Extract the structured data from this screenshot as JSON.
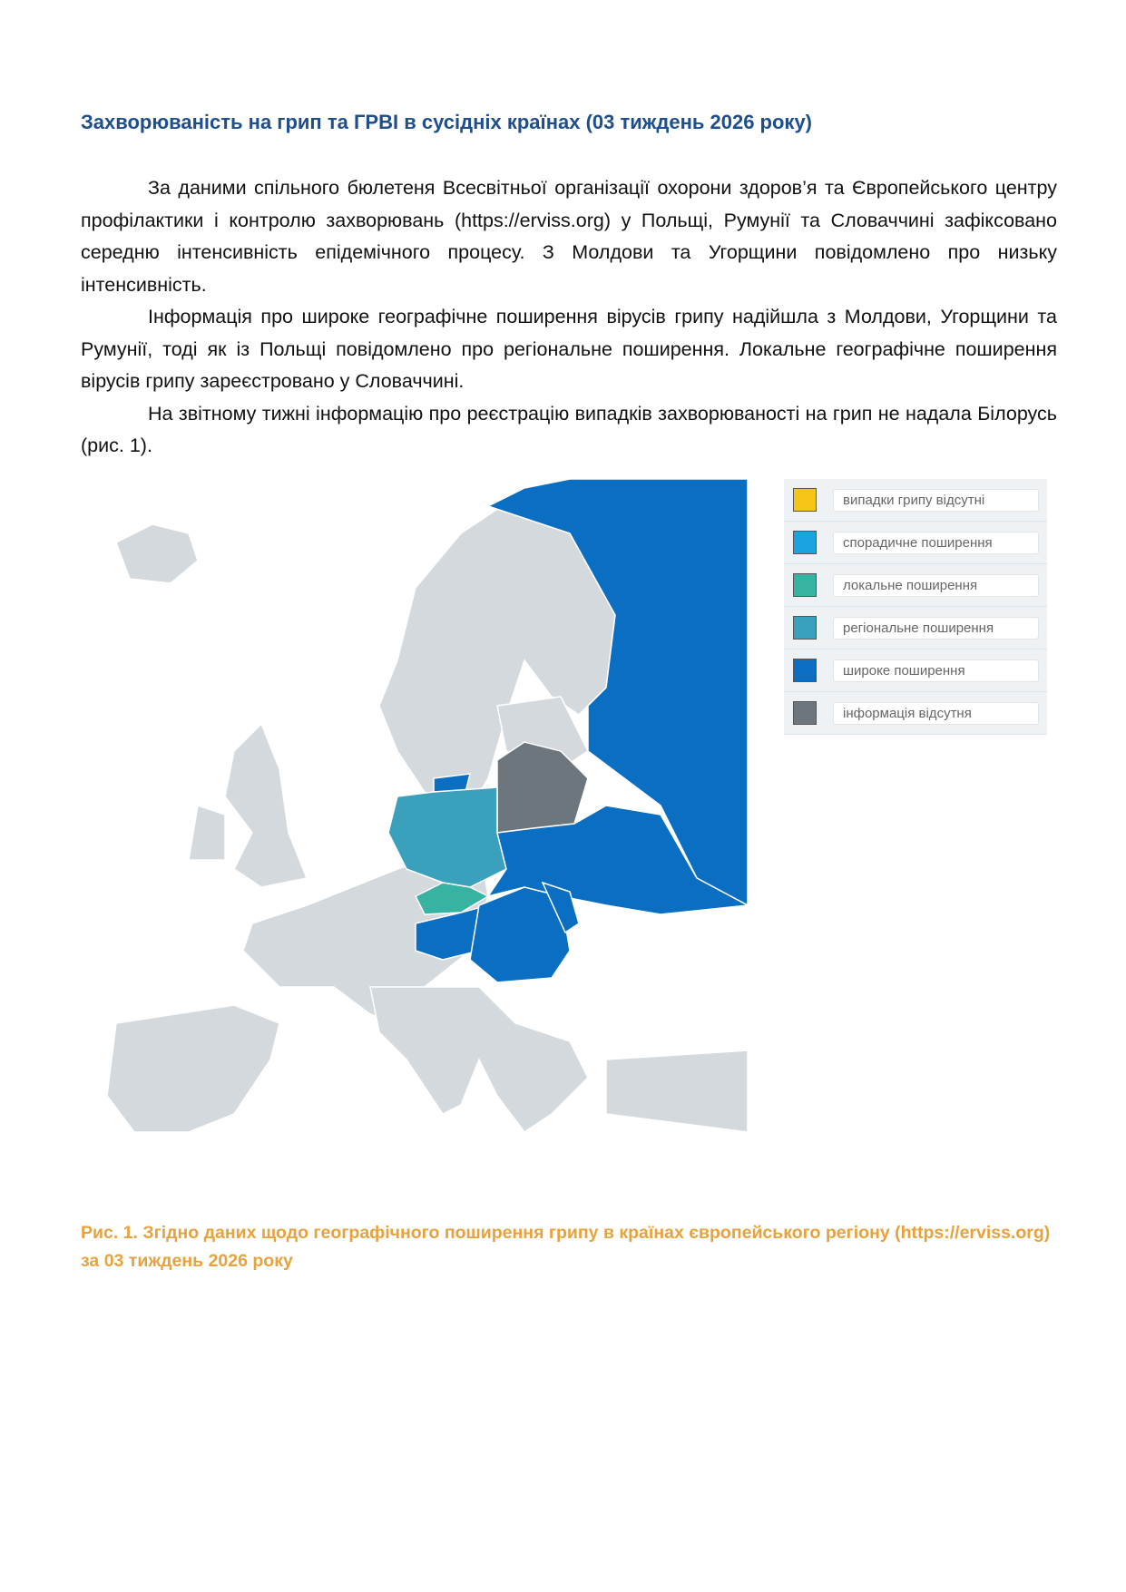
{
  "title": "Захворюваність на грип та ГРВІ в сусідніх країнах (03 тиждень 2026 року)",
  "paragraphs": [
    "За даними спільного бюлетеня Всесвітньої організації охорони здоров’я та Європейського центру профілактики і контролю захворювань (https://erviss.org) у Польщі, Румунії та Словаччині зафіксовано середню інтенсивність епідемічного процесу. З Молдови та Угорщини повідомлено про низьку інтенсивність.",
    "Інформація про широке географічне поширення вірусів грипу надійшла з Молдови, Угорщини та Румунії, тоді як із Польщі повідомлено про регіональне поширення. Локальне географічне поширення вірусів грипу зареєстровано у Словаччині.",
    "На звітному тижні інформацію про реєстрацію випадків захворюваності на грип не надала Білорусь (рис. 1)."
  ],
  "legend": [
    {
      "label": "випадки грипу відсутні",
      "color": "#f5c518"
    },
    {
      "label": "спорадичне поширення",
      "color": "#1aa3e0"
    },
    {
      "label": "локальне поширення",
      "color": "#37b3a4"
    },
    {
      "label": "регіональне поширення",
      "color": "#3aa0bb"
    },
    {
      "label": "широке поширення",
      "color": "#0a6fc2"
    },
    {
      "label": "інформація відсутня",
      "color": "#6e767d"
    }
  ],
  "map_colors": {
    "default": "#d4d9dd",
    "border": "#ffffff"
  },
  "caption": "Рис. 1. Згідно даних щодо географічного поширення грипу в країнах європейського регіону (https://erviss.org) за 03 тиждень 2026 року"
}
